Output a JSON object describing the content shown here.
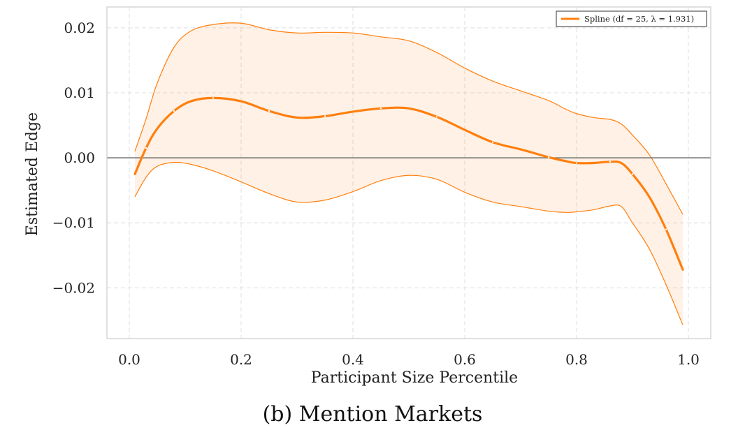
{
  "chart_data": {
    "type": "line",
    "xlabel": "Participant Size Percentile",
    "ylabel": "Estimated Edge",
    "xlim": [
      -0.04,
      1.04
    ],
    "ylim": [
      -0.0278,
      0.0232
    ],
    "xticks": [
      0.0,
      0.2,
      0.4,
      0.6,
      0.8,
      1.0
    ],
    "xtick_labels": [
      "0.0",
      "0.2",
      "0.4",
      "0.6",
      "0.8",
      "1.0"
    ],
    "yticks": [
      -0.02,
      -0.01,
      0.0,
      0.01,
      0.02
    ],
    "ytick_labels": [
      "−0.02",
      "−0.01",
      "0.00",
      "0.01",
      "0.02"
    ],
    "grid": true,
    "reference_line_y": 0.0,
    "legend": {
      "placement": "top-right",
      "entries": [
        "Spline (df = 25, λ = 1.931)"
      ]
    },
    "series": [
      {
        "name": "Spline (df = 25, λ = 1.931)",
        "color": "#ff7f0e",
        "x": [
          0.01,
          0.03,
          0.05,
          0.08,
          0.11,
          0.15,
          0.2,
          0.25,
          0.3,
          0.35,
          0.4,
          0.45,
          0.5,
          0.55,
          0.6,
          0.65,
          0.7,
          0.75,
          0.78,
          0.8,
          0.83,
          0.86,
          0.88,
          0.9,
          0.93,
          0.96,
          0.99
        ],
        "y": [
          -0.0025,
          0.0015,
          0.0045,
          0.0072,
          0.0087,
          0.0092,
          0.0087,
          0.0072,
          0.0062,
          0.0064,
          0.0071,
          0.0076,
          0.0076,
          0.0063,
          0.0043,
          0.0024,
          0.0013,
          0.0001,
          -0.0005,
          -0.0008,
          -0.0008,
          -0.0006,
          -0.0008,
          -0.0025,
          -0.006,
          -0.011,
          -0.0172
        ],
        "lower": [
          -0.006,
          -0.003,
          -0.0013,
          -0.0007,
          -0.001,
          -0.002,
          -0.0037,
          -0.0055,
          -0.0068,
          -0.0065,
          -0.0052,
          -0.0035,
          -0.0027,
          -0.0033,
          -0.0053,
          -0.0068,
          -0.0075,
          -0.0082,
          -0.0084,
          -0.0083,
          -0.008,
          -0.0074,
          -0.0075,
          -0.01,
          -0.014,
          -0.0195,
          -0.0257
        ],
        "upper": [
          0.001,
          0.006,
          0.0115,
          0.017,
          0.0195,
          0.0205,
          0.0207,
          0.0197,
          0.0192,
          0.0193,
          0.0192,
          0.0186,
          0.018,
          0.0162,
          0.0138,
          0.0118,
          0.0103,
          0.0088,
          0.0075,
          0.0068,
          0.0062,
          0.0059,
          0.0052,
          0.0035,
          0.0005,
          -0.004,
          -0.0087
        ]
      }
    ]
  },
  "caption": "(b) Mention Markets"
}
